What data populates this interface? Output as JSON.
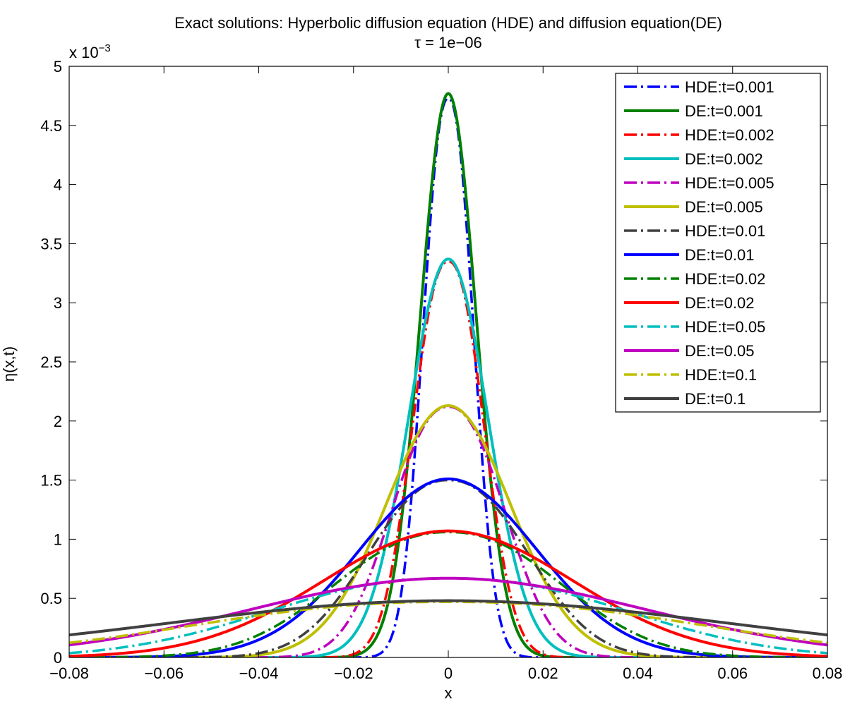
{
  "chart_data": {
    "type": "line",
    "title": "Exact solutions: Hyperbolic diffusion equation (HDE) and diffusion equation(DE)",
    "subtitle_symbol": "τ",
    "subtitle_rest": " = 1e−06",
    "xlabel": "x",
    "ylabel": "η(x,t)",
    "y_multiplier_base": "x 10",
    "y_multiplier_exp": "−3",
    "xlim": [
      -0.08,
      0.08
    ],
    "ylim": [
      0,
      0.005
    ],
    "x_ticks": [
      -0.08,
      -0.06,
      -0.04,
      -0.02,
      0,
      0.02,
      0.04,
      0.06,
      0.08
    ],
    "x_tick_labels": [
      "−0.08",
      "−0.06",
      "−0.04",
      "−0.02",
      "0",
      "0.02",
      "0.04",
      "0.06",
      "0.08"
    ],
    "y_ticks": [
      0,
      0.0005,
      0.001,
      0.0015,
      0.002,
      0.0025,
      0.003,
      0.0035,
      0.004,
      0.0045,
      0.005
    ],
    "y_tick_labels": [
      "0",
      "0.5",
      "1",
      "1.5",
      "2",
      "2.5",
      "3",
      "3.5",
      "4",
      "4.5",
      "5"
    ],
    "grid": false,
    "legend_position": "top-right",
    "series": [
      {
        "name": "HDE:t=0.001",
        "kind": "hde",
        "t": 0.001,
        "peak": 0.00473,
        "color": "#0000ff",
        "dash": "dashdot"
      },
      {
        "name": "DE:t=0.001",
        "kind": "de",
        "t": 0.001,
        "peak": 0.00477,
        "color": "#008000",
        "dash": "solid"
      },
      {
        "name": "HDE:t=0.002",
        "kind": "hde",
        "t": 0.002,
        "peak": 0.00335,
        "color": "#ff0000",
        "dash": "dashdot"
      },
      {
        "name": "DE:t=0.002",
        "kind": "de",
        "t": 0.002,
        "peak": 0.00337,
        "color": "#00bfbf",
        "dash": "solid"
      },
      {
        "name": "HDE:t=0.005",
        "kind": "hde",
        "t": 0.005,
        "peak": 0.00212,
        "color": "#bf00bf",
        "dash": "dashdot"
      },
      {
        "name": "DE:t=0.005",
        "kind": "de",
        "t": 0.005,
        "peak": 0.00213,
        "color": "#bfbf00",
        "dash": "solid"
      },
      {
        "name": "HDE:t=0.01",
        "kind": "hde",
        "t": 0.01,
        "peak": 0.0015,
        "color": "#404040",
        "dash": "dashdot"
      },
      {
        "name": "DE:t=0.01",
        "kind": "de",
        "t": 0.01,
        "peak": 0.00151,
        "color": "#0000ff",
        "dash": "solid"
      },
      {
        "name": "HDE:t=0.02",
        "kind": "hde",
        "t": 0.02,
        "peak": 0.00106,
        "color": "#008000",
        "dash": "dashdot"
      },
      {
        "name": "DE:t=0.02",
        "kind": "de",
        "t": 0.02,
        "peak": 0.00107,
        "color": "#ff0000",
        "dash": "solid"
      },
      {
        "name": "HDE:t=0.05",
        "kind": "hde",
        "t": 0.05,
        "peak": 0.00067,
        "color": "#00bfbf",
        "dash": "dashdot"
      },
      {
        "name": "DE:t=0.05",
        "kind": "de",
        "t": 0.05,
        "peak": 0.00067,
        "color": "#bf00bf",
        "dash": "solid"
      },
      {
        "name": "HDE:t=0.1",
        "kind": "hde",
        "t": 0.1,
        "peak": 0.00047,
        "color": "#bfbf00",
        "dash": "dashdot"
      },
      {
        "name": "DE:t=0.1",
        "kind": "de",
        "t": 0.1,
        "peak": 0.00048,
        "color": "#404040",
        "dash": "solid"
      }
    ]
  }
}
